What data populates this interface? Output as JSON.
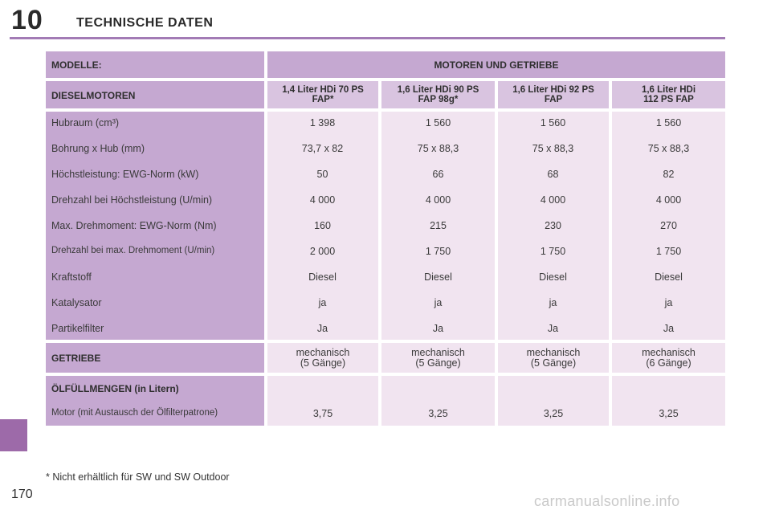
{
  "header": {
    "chapter_number": "10",
    "chapter_title": "TECHNISCHE DATEN"
  },
  "page_number": "170",
  "footnote": "* Nicht erhältlich für SW und SW Outdoor",
  "watermark": "carmanualsonline.info",
  "table": {
    "head": {
      "modelle_label": "MODELLE:",
      "motoren_label": "MOTOREN UND GETRIEBE"
    },
    "diesel": {
      "label": "DIESELMOTOREN",
      "columns": [
        {
          "line1": "1,4 Liter HDi 70 PS",
          "line2": "FAP*"
        },
        {
          "line1": "1,6 Liter HDi 90 PS",
          "line2": "FAP 98g*"
        },
        {
          "line1": "1,6 Liter HDi 92 PS",
          "line2": "FAP"
        },
        {
          "line1": "1,6 Liter HDi",
          "line2": "112 PS FAP"
        }
      ]
    },
    "specs": [
      {
        "label": "Hubraum (cm³)",
        "values": [
          "1 398",
          "1 560",
          "1 560",
          "1 560"
        ]
      },
      {
        "label": "Bohrung x Hub (mm)",
        "values": [
          "73,7 x 82",
          "75 x 88,3",
          "75 x 88,3",
          "75 x 88,3"
        ]
      },
      {
        "label": "Höchstleistung: EWG-Norm (kW)",
        "values": [
          "50",
          "66",
          "68",
          "82"
        ]
      },
      {
        "label": "Drehzahl bei Höchstleistung (U/min)",
        "values": [
          "4 000",
          "4 000",
          "4 000",
          "4 000"
        ]
      },
      {
        "label": "Max. Drehmoment: EWG-Norm (Nm)",
        "values": [
          "160",
          "215",
          "230",
          "270"
        ]
      },
      {
        "label": "Drehzahl bei max. Drehmoment (U/min)",
        "values": [
          "2 000",
          "1 750",
          "1 750",
          "1 750"
        ]
      },
      {
        "label": "Kraftstoff",
        "values": [
          "Diesel",
          "Diesel",
          "Diesel",
          "Diesel"
        ]
      },
      {
        "label": "Katalysator",
        "values": [
          "ja",
          "ja",
          "ja",
          "ja"
        ]
      },
      {
        "label": "Partikelfilter",
        "values": [
          "Ja",
          "Ja",
          "Ja",
          "Ja"
        ]
      }
    ],
    "getriebe": {
      "label": "GETRIEBE",
      "values": [
        {
          "line1": "mechanisch",
          "line2": "(5 Gänge)"
        },
        {
          "line1": "mechanisch",
          "line2": "(5 Gänge)"
        },
        {
          "line1": "mechanisch",
          "line2": "(5 Gänge)"
        },
        {
          "line1": "mechanisch",
          "line2": "(6 Gänge)"
        }
      ]
    },
    "oel": {
      "label": "ÖLFÜLLMENGEN (in Litern)",
      "sublabel": "Motor (mit Austausch der Ölfilterpatrone)",
      "values": [
        "3,75",
        "3,25",
        "3,25",
        "3,25"
      ]
    }
  },
  "colors": {
    "accent": "#a27bb5",
    "label_dark": "#c5a8d1",
    "label_light": "#d9c4e0",
    "value_bg": "#f1e4f0",
    "side_tab": "#9d6aa9"
  }
}
